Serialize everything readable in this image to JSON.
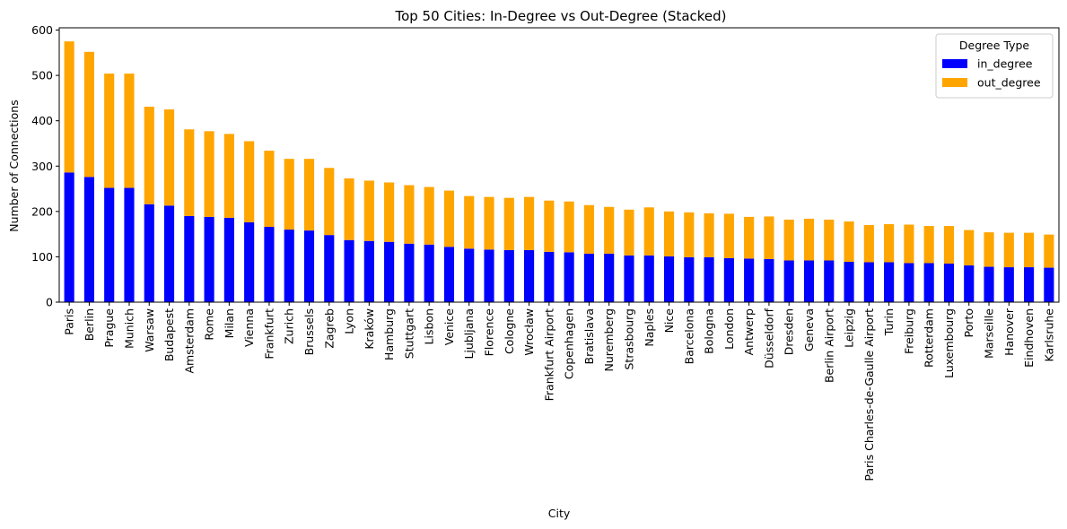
{
  "chart_data": {
    "type": "bar",
    "stacked": true,
    "title": "Top 50 Cities: In-Degree vs Out-Degree (Stacked)",
    "xlabel": "City",
    "ylabel": "Number of Connections",
    "ylim": [
      0,
      605
    ],
    "yticks": [
      0,
      100,
      200,
      300,
      400,
      500,
      600
    ],
    "legend": {
      "title": "Degree Type",
      "placement": "top-right"
    },
    "categories": [
      "Paris",
      "Berlin",
      "Prague",
      "Munich",
      "Warsaw",
      "Budapest",
      "Amsterdam",
      "Rome",
      "Milan",
      "Vienna",
      "Frankfurt",
      "Zurich",
      "Brussels",
      "Zagreb",
      "Lyon",
      "Kraków",
      "Hamburg",
      "Stuttgart",
      "Lisbon",
      "Venice",
      "Ljubljana",
      "Florence",
      "Cologne",
      "Wrocław",
      "Frankfurt Airport",
      "Copenhagen",
      "Bratislava",
      "Nuremberg",
      "Strasbourg",
      "Naples",
      "Nice",
      "Barcelona",
      "Bologna",
      "London",
      "Antwerp",
      "Düsseldorf",
      "Dresden",
      "Geneva",
      "Berlin Airport",
      "Leipzig",
      "Paris Charles-de-Gaulle Airport",
      "Turin",
      "Freiburg",
      "Rotterdam",
      "Luxembourg",
      "Porto",
      "Marseille",
      "Hanover",
      "Eindhoven",
      "Karlsruhe"
    ],
    "series": [
      {
        "name": "in_degree",
        "color": "#0000ff",
        "values": [
          286,
          276,
          252,
          252,
          216,
          213,
          190,
          188,
          186,
          176,
          166,
          160,
          158,
          148,
          137,
          135,
          133,
          129,
          127,
          122,
          118,
          116,
          115,
          115,
          111,
          110,
          107,
          107,
          103,
          103,
          101,
          99,
          99,
          97,
          96,
          95,
          92,
          92,
          92,
          89,
          88,
          88,
          86,
          86,
          85,
          81,
          78,
          77,
          77,
          76
        ]
      },
      {
        "name": "out_degree",
        "color": "#ffa500",
        "values": [
          289,
          276,
          252,
          252,
          215,
          212,
          191,
          189,
          185,
          179,
          168,
          156,
          158,
          148,
          136,
          133,
          131,
          129,
          127,
          124,
          116,
          116,
          115,
          117,
          113,
          112,
          107,
          103,
          101,
          106,
          99,
          99,
          97,
          98,
          92,
          94,
          90,
          92,
          90,
          89,
          82,
          84,
          85,
          82,
          83,
          78,
          76,
          76,
          76,
          73
        ]
      }
    ]
  }
}
